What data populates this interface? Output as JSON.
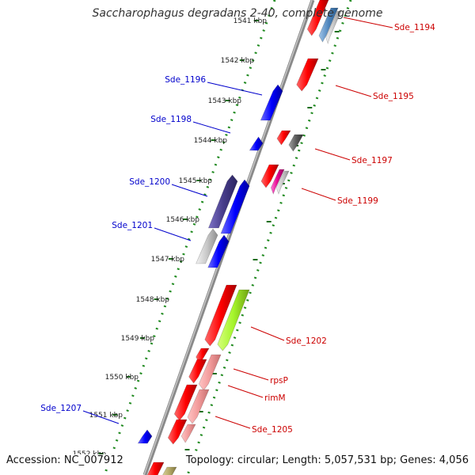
{
  "title": "Saccharophagus degradans 2-40, complete genome",
  "footer": {
    "accession": "Accession: NC_007912",
    "summary": "Topology: circular; Length: 5,057,531 bp; Genes: 4,056"
  },
  "colors": {
    "backbone": "#7a7a7a",
    "forward_label": "#0000cc",
    "reverse_label": "#cc0000",
    "tick_major": "#2e7d32",
    "tick_minor": "#1b5e20"
  },
  "kbp_ticks": [
    {
      "label": "1541 kbp"
    },
    {
      "label": "1542 kbp"
    },
    {
      "label": "1543 kbp"
    },
    {
      "label": "1544 kbp"
    },
    {
      "label": "1545 kbp"
    },
    {
      "label": "1546 kbp"
    },
    {
      "label": "1547 kbp"
    },
    {
      "label": "1548 kbp"
    },
    {
      "label": "1549 kbp"
    },
    {
      "label": "1550 kbp"
    },
    {
      "label": "1551 kbp"
    },
    {
      "label": "1552 kbp"
    }
  ],
  "gene_labels": {
    "forward": [
      "Sde_1196",
      "Sde_1198",
      "Sde_1200",
      "Sde_1201",
      "Sde_1207"
    ],
    "reverse": [
      "Sde_1194",
      "Sde_1195",
      "Sde_1197",
      "Sde_1199",
      "Sde_1202",
      "rpsP",
      "rimM",
      "Sde_1205"
    ]
  }
}
